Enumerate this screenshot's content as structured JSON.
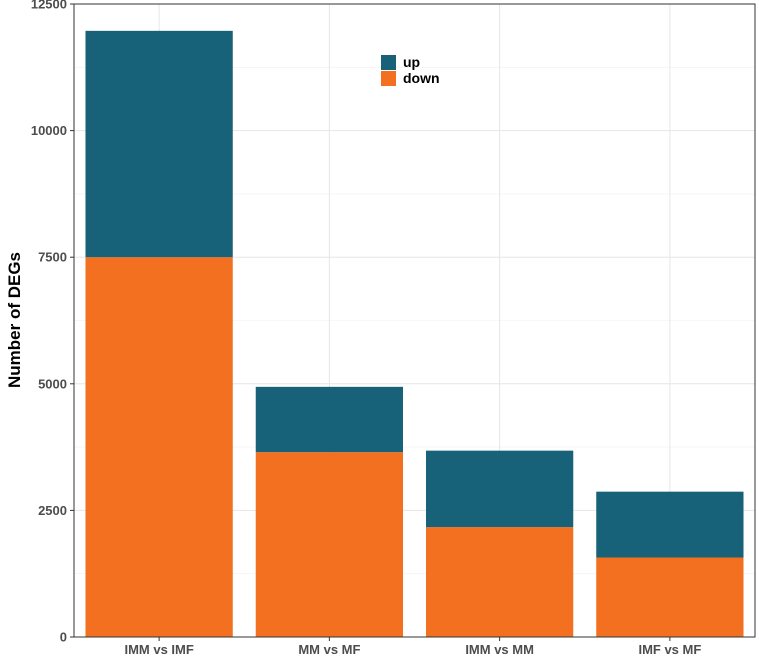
{
  "chart_data": {
    "type": "bar",
    "stacked": true,
    "title": "",
    "xlabel": "",
    "ylabel": "Number of DEGs",
    "ylim": [
      0,
      12500
    ],
    "yticks": [
      0,
      2500,
      5000,
      7500,
      10000,
      12500
    ],
    "grid": true,
    "legend_position": "top-center",
    "categories": [
      "IMM vs IMF",
      "MM vs MF",
      "IMM vs MM",
      "IMF vs MF"
    ],
    "series": [
      {
        "name": "down",
        "color": "#F37021",
        "values": [
          7500,
          3650,
          2170,
          1570
        ]
      },
      {
        "name": "up",
        "color": "#176279",
        "values": [
          4470,
          1290,
          1510,
          1300
        ]
      }
    ],
    "legend": [
      {
        "name": "up",
        "color": "#176279"
      },
      {
        "name": "down",
        "color": "#F37021"
      }
    ]
  }
}
